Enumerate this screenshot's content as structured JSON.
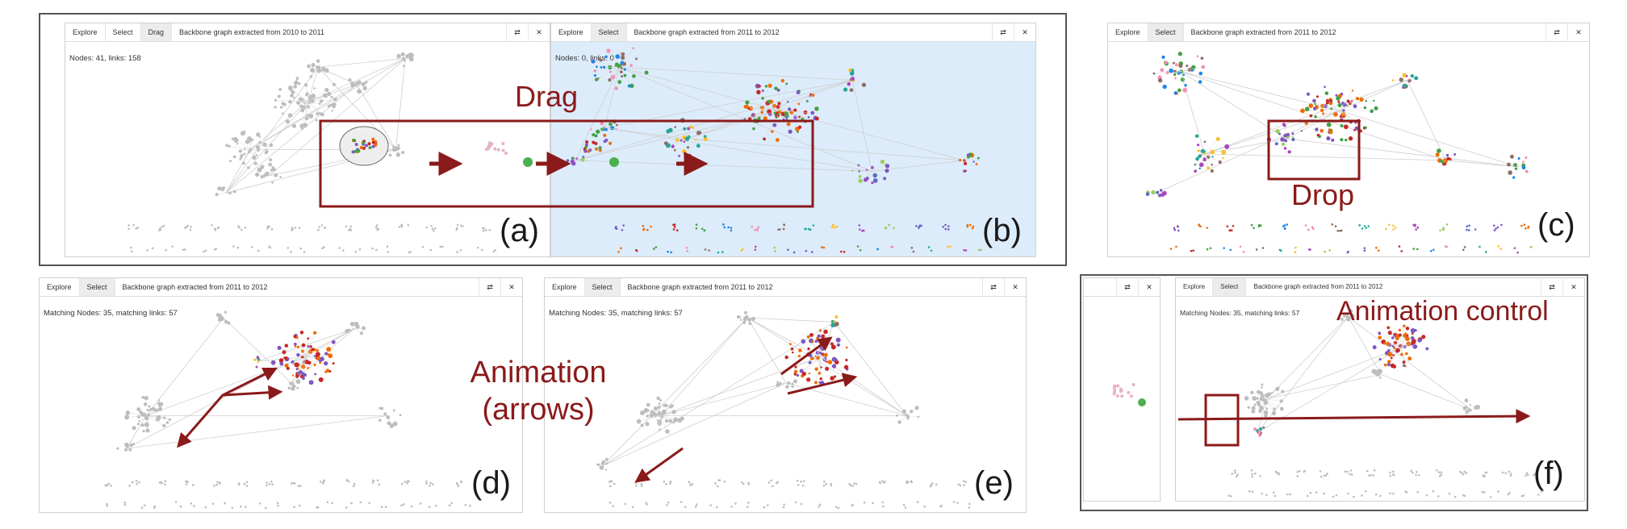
{
  "panels": {
    "a": {
      "tabs": [
        "Explore",
        "Select",
        "Drag"
      ],
      "active_tab": 2,
      "title": "Backbone graph extracted from 2010 to 2011",
      "stats": "Nodes: 41, links: 158",
      "label": "(a)"
    },
    "b": {
      "tabs": [
        "Explore",
        "Select"
      ],
      "active_tab": 1,
      "title": "Backbone graph extracted from 2011 to 2012",
      "stats": "Nodes: 0, links: 0",
      "label": "(b)"
    },
    "c": {
      "tabs": [
        "Explore",
        "Select"
      ],
      "active_tab": 1,
      "title": "Backbone graph extracted from 2011 to 2012",
      "stats": "",
      "label": "(c)"
    },
    "d": {
      "tabs": [
        "Explore",
        "Select"
      ],
      "active_tab": 1,
      "title": "Backbone graph extracted from 2011 to 2012",
      "stats": "Matching Nodes: 35, matching links: 57",
      "label": "(d)"
    },
    "e": {
      "tabs": [
        "Explore",
        "Select"
      ],
      "active_tab": 1,
      "title": "Backbone graph extracted from 2011 to 2012",
      "stats": "Matching Nodes: 35, matching links: 57",
      "label": "(e)"
    },
    "f": {
      "tabs": [
        "Explore",
        "Select"
      ],
      "active_tab": 1,
      "title": "Backbone graph extracted from 2011 to 2012",
      "stats": "Matching Nodes: 35, matching links: 57",
      "label": "(f)"
    }
  },
  "toolbar_icons": {
    "settings": "⇄",
    "close": "✕"
  },
  "annotations": {
    "drag": "Drag",
    "drop": "Drop",
    "animation_line1": "Animation",
    "animation_line2": "(arrows)",
    "animation_control": "Animation control"
  },
  "colors": {
    "annotation": "#8b1a1a",
    "node_gray": "#bdbdbd",
    "drop_zone_blue": "#dcecfb",
    "add_badge": "#4caf50"
  }
}
